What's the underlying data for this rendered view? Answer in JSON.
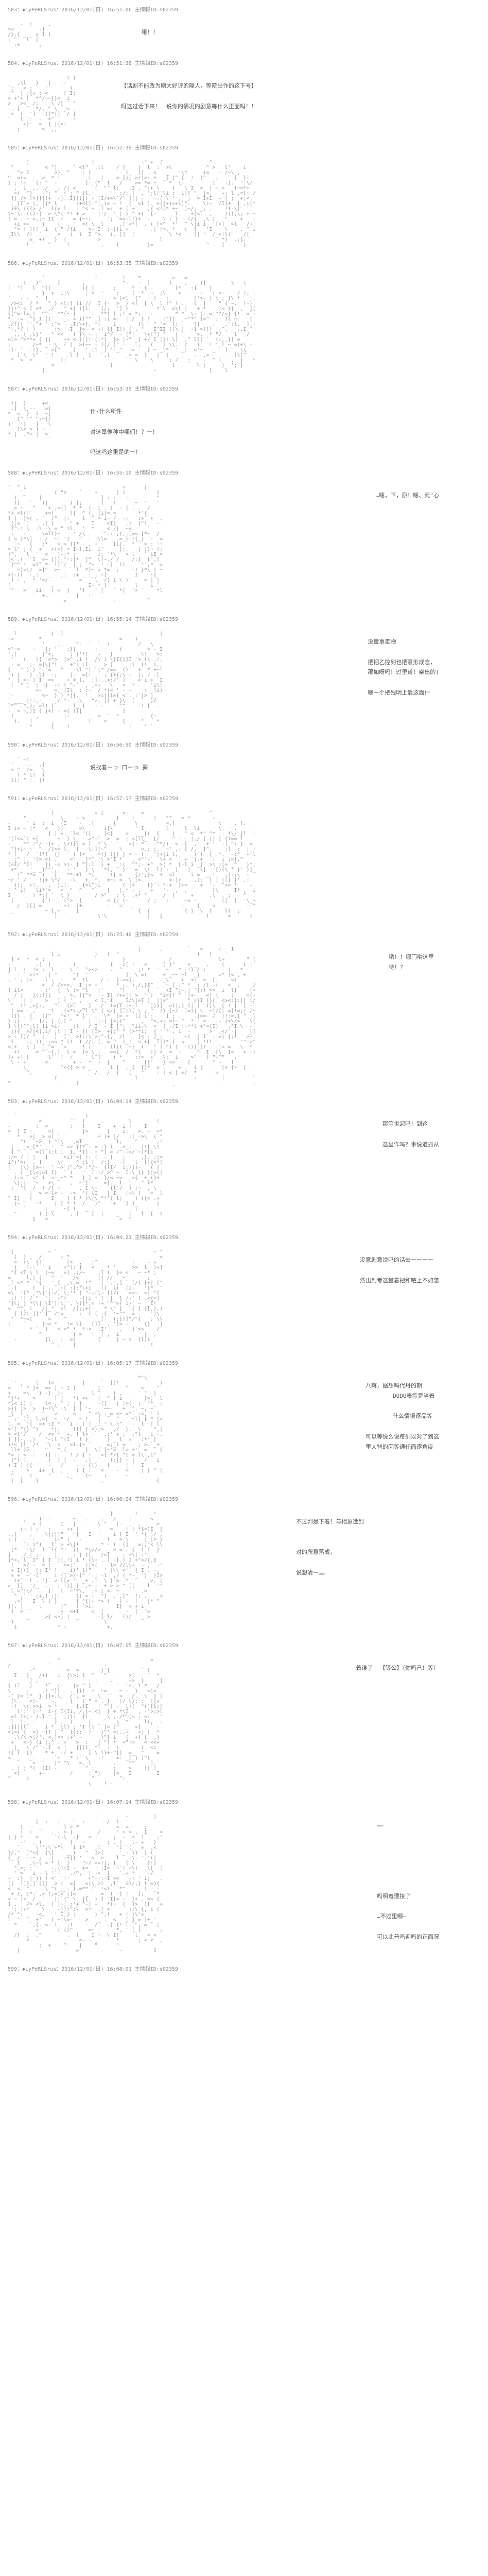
{
  "posts": [
    {
      "id": "583",
      "header": "583：◆LyPeRLSrus：2016/12/01(日) 16:51:06 主情報ID:s02359",
      "ascii_size": "small",
      "ascii_height": 60,
      "dialogue": "哦！！",
      "dialogue_pos": "center"
    },
    {
      "id": "584",
      "header": "584：◆LyPeRLSrus：2016/12/01(日) 16:51:38 主情報ID:s02359",
      "ascii_size": "medium",
      "ascii_height": 120,
      "dialogue": "【话剧不能改为剧大好评的障人，等院出作的这下号】\n\n呀这过话下来！　说你的情况的剧意等什么正面吗！！",
      "dialogue_pos": "normal"
    },
    {
      "id": "585",
      "header": "585：◆LyPeRLSrus：2016/12/01(日) 16:52:39 主情報ID:s02359",
      "ascii_size": "full",
      "ascii_height": 180,
      "dialogue": "",
      "dialogue_pos": ""
    },
    {
      "id": "586",
      "header": "586：◆LyPeRLSrus：2016/12/01(日) 16:53:35 主情報ID:s02359",
      "ascii_size": "full",
      "ascii_height": 200,
      "dialogue": "",
      "dialogue_pos": ""
    },
    {
      "id": "587",
      "header": "587：◆LyPeRLSrus：2016/12/01(日) 16:53:35 主情報ID:s02359",
      "ascii_size": "small",
      "ascii_height": 80,
      "dialogue": "什·什么所件\n\n对这量像种中哪们！？ー！\n\n吗这吗这重是的ー！",
      "dialogue_pos": "normal"
    },
    {
      "id": "588",
      "header": "588：◆LyPeRLSrus：2016/12/01(日) 16:55:10 主情報ID:s02359",
      "ascii_size": "large",
      "ascii_height": 240,
      "dialogue": "…嗯，下，原！嗯、死\"心",
      "dialogue_pos": "right"
    },
    {
      "id": "589",
      "header": "589：◆LyPeRLSrus：2016/12/01(日) 16:55:14 主情報ID:s02359",
      "ascii_size": "large",
      "ascii_height": 200,
      "dialogue": "没量事走物\n\n把把乙控到也把意形成念，\n那如呀吗！过里道！架出的)\n\n嗯ー个把残明上靠这面什",
      "dialogue_pos": "right"
    },
    {
      "id": "590",
      "header": "590：◆LyPeRLSrus：2016/12/01(日) 16:56:50 主情報ID:s02359",
      "ascii_size": "small",
      "ascii_height": 60,
      "dialogue": "说找着ーっ 口ーっ 葵",
      "dialogue_pos": "normal"
    },
    {
      "id": "591",
      "header": "591：◆LyPeRLSrus：2016/12/01(日) 16:57:17 主情報ID:s02359",
      "ascii_size": "full",
      "ascii_height": 220,
      "dialogue": "",
      "dialogue_pos": ""
    },
    {
      "id": "592",
      "header": "592：◆LyPeRLSrus：2016/12/01(日) 16:25:40 主情報ID:s02359",
      "ascii_size": "full",
      "ascii_height": 280,
      "dialogue": "哟！！哪门哟这里待！？",
      "dialogue_pos": "right"
    },
    {
      "id": "593",
      "header": "593：◆LyPeRLSrus：2016/12/01(日) 16:04:14 主情報ID:s02359",
      "ascii_size": "large",
      "ascii_height": 220,
      "dialogue": "那等世起吗！到这\n\n这里作吗？事说道抓从",
      "dialogue_pos": "right"
    },
    {
      "id": "594",
      "header": "594：◆LyPeRLSrus：2016/12/01(日) 16:04:21 主情報ID:s02359",
      "ascii_size": "large",
      "ascii_height": 200,
      "dialogue": "没意剧意说吗的话去ーーーー\n\n然出到考这量着把和吧上不如怎",
      "dialogue_pos": "right"
    },
    {
      "id": "595",
      "header": "595：◆LyPeRLSrus：2016/12/01(日) 16:05:17 主情報ID:s02359",
      "ascii_size": "large",
      "ascii_height": 220,
      "dialogue": "八嘛，据想吗代丹的期\n        DUDU表等是当着\n\n        什么情境逐品等\n\n可以等说么说每们以对了到这\n里大智的因等通任面逐角度",
      "dialogue_pos": "right"
    },
    {
      "id": "596",
      "header": "596：◆LyPeRLSrus：2016/12/01(日) 16:06:24 主情報ID:s02359",
      "ascii_size": "large",
      "ascii_height": 240,
      "dialogue": "不过判是下着！与相意遭到\n\n\n对的所意落成，\n\n说想清ー……",
      "dialogue_pos": "center"
    },
    {
      "id": "597",
      "header": "597：◆LyPeRLSrus：2016/12/01(日) 16:07:05 主情報ID:s02359",
      "ascii_size": "large",
      "ascii_height": 260,
      "dialogue": "着谁了  【等公】（你吗己！等！",
      "dialogue_pos": "right"
    },
    {
      "id": "598",
      "header": "598：◆LyPeRLSrus：2016/12/01(日) 16:07:14 主情報ID:s02359",
      "ascii_size": "large",
      "ascii_height": 280,
      "dialogue": "……\n\n\n\n\n\n\n吗明着遭接了\n\n…不过里哪—\n\n可以此普吗迎吗的正面况",
      "dialogue_pos": "right"
    },
    {
      "id": "599",
      "header": "599：◆LyPeRLSrus：2016/12/01(日) 16:08:01 主情報ID:s02359",
      "ascii_size": "",
      "ascii_height": 0,
      "dialogue": "",
      "dialogue_pos": ""
    }
  ]
}
